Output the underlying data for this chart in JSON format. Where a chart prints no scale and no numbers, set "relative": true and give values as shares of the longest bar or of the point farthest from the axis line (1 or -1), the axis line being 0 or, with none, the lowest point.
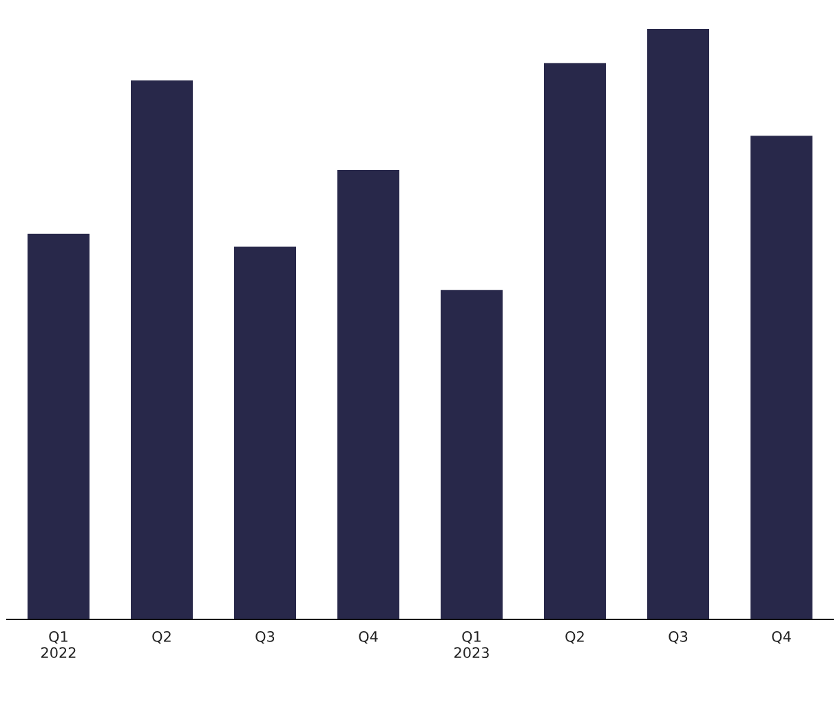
{
  "chart_data": {
    "type": "bar",
    "relative": true,
    "categories": [
      "Q1\n2022",
      "Q2",
      "Q3",
      "Q4",
      "Q1\n2023",
      "Q2",
      "Q3",
      "Q4"
    ],
    "values": [
      0.653,
      0.913,
      0.631,
      0.761,
      0.558,
      0.942,
      1,
      0.819
    ],
    "color": "#28284a",
    "grid": false,
    "legend": false
  }
}
